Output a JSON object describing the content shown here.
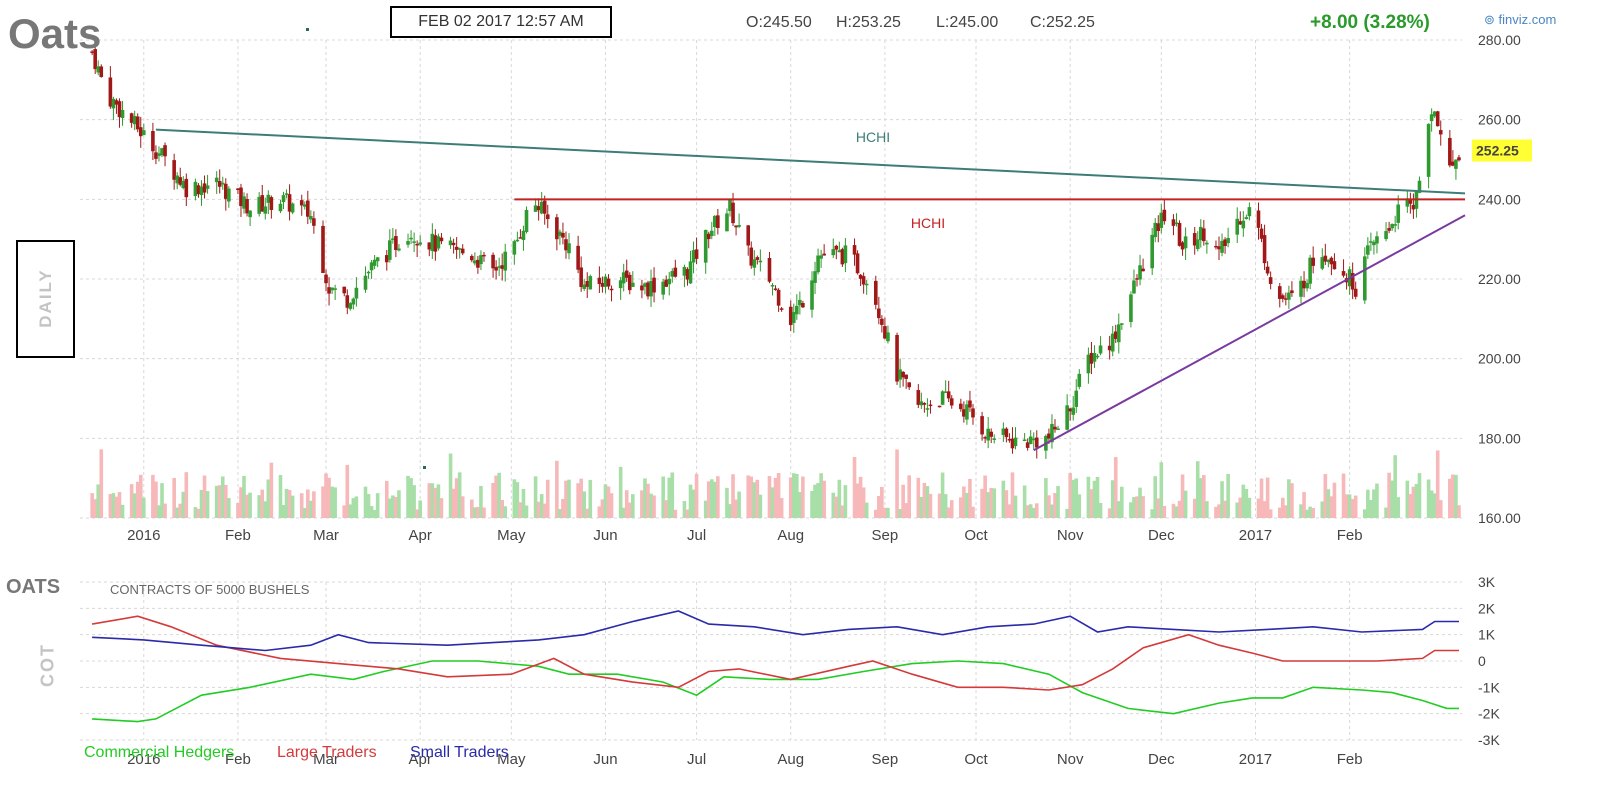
{
  "header": {
    "ticker": "Oats",
    "timestamp": "FEB 02 2017 12:57 AM",
    "open": "O:245.50",
    "high": "H:253.25",
    "low": "L:245.00",
    "close": "C:252.25",
    "change": "+8.00 (3.28%)",
    "brand": "finviz.com"
  },
  "sidebar": {
    "daily_label": "DAILY"
  },
  "cot": {
    "title": "OATS",
    "subtitle": "CONTRACTS OF 5000 BUSHELS",
    "side_label": "COT",
    "legend": [
      {
        "label": "Commercial Hedgers",
        "color": "#22cc22"
      },
      {
        "label": "Large Traders",
        "color": "#d43a3a"
      },
      {
        "label": "Small Traders",
        "color": "#2a2aaa"
      }
    ]
  },
  "colors": {
    "up": "#2f9a2f",
    "down": "#a01818",
    "vol_up": "#a8dfa8",
    "vol_down": "#f6b8b8",
    "grid": "#d8d8d8",
    "price_badge": "#ffff33"
  },
  "chart_data": [
    {
      "type": "candlestick",
      "title": "Oats",
      "ylim": [
        160,
        280
      ],
      "y_ticks": [
        "280.00",
        "260.00",
        "240.00",
        "220.00",
        "200.00",
        "180.00",
        "160.00"
      ],
      "x_ticks": [
        "2016",
        "Feb",
        "Mar",
        "Apr",
        "May",
        "Jun",
        "Jul",
        "Aug",
        "Sep",
        "Oct",
        "Nov",
        "Dec",
        "2017",
        "Feb"
      ],
      "last_price": "252.25",
      "close_path": [
        {
          "date": "2015-12-15",
          "value": 277
        },
        {
          "date": "2015-12-20",
          "value": 266
        },
        {
          "date": "2015-12-31",
          "value": 257
        },
        {
          "date": "2016-01-08",
          "value": 250
        },
        {
          "date": "2016-01-15",
          "value": 243
        },
        {
          "date": "2016-01-25",
          "value": 244
        },
        {
          "date": "2016-02-05",
          "value": 238
        },
        {
          "date": "2016-02-15",
          "value": 240
        },
        {
          "date": "2016-02-25",
          "value": 236
        },
        {
          "date": "2016-03-02",
          "value": 218
        },
        {
          "date": "2016-03-08",
          "value": 215
        },
        {
          "date": "2016-03-15",
          "value": 222
        },
        {
          "date": "2016-03-28",
          "value": 232
        },
        {
          "date": "2016-04-08",
          "value": 228
        },
        {
          "date": "2016-04-18",
          "value": 226
        },
        {
          "date": "2016-04-25",
          "value": 222
        },
        {
          "date": "2016-05-02",
          "value": 228
        },
        {
          "date": "2016-05-08",
          "value": 240
        },
        {
          "date": "2016-05-12",
          "value": 236
        },
        {
          "date": "2016-05-20",
          "value": 228
        },
        {
          "date": "2016-05-25",
          "value": 218
        },
        {
          "date": "2016-06-05",
          "value": 220
        },
        {
          "date": "2016-06-15",
          "value": 218
        },
        {
          "date": "2016-06-28",
          "value": 222
        },
        {
          "date": "2016-07-05",
          "value": 232
        },
        {
          "date": "2016-07-12",
          "value": 238
        },
        {
          "date": "2016-07-18",
          "value": 226
        },
        {
          "date": "2016-07-25",
          "value": 220
        },
        {
          "date": "2016-08-01",
          "value": 210
        },
        {
          "date": "2016-08-05",
          "value": 215
        },
        {
          "date": "2016-08-10",
          "value": 226
        },
        {
          "date": "2016-08-20",
          "value": 226
        },
        {
          "date": "2016-08-28",
          "value": 218
        },
        {
          "date": "2016-09-05",
          "value": 196
        },
        {
          "date": "2016-09-12",
          "value": 188
        },
        {
          "date": "2016-09-20",
          "value": 190
        },
        {
          "date": "2016-09-28",
          "value": 187
        },
        {
          "date": "2016-10-05",
          "value": 181
        },
        {
          "date": "2016-10-15",
          "value": 179
        },
        {
          "date": "2016-10-25",
          "value": 180
        },
        {
          "date": "2016-11-01",
          "value": 188
        },
        {
          "date": "2016-11-07",
          "value": 200
        },
        {
          "date": "2016-11-15",
          "value": 205
        },
        {
          "date": "2016-11-22",
          "value": 218
        },
        {
          "date": "2016-11-28",
          "value": 230
        },
        {
          "date": "2016-12-03",
          "value": 238
        },
        {
          "date": "2016-12-08",
          "value": 228
        },
        {
          "date": "2016-12-15",
          "value": 232
        },
        {
          "date": "2016-12-20",
          "value": 226
        },
        {
          "date": "2016-12-27",
          "value": 236
        },
        {
          "date": "2016-12-31",
          "value": 238
        },
        {
          "date": "2017-01-04",
          "value": 226
        },
        {
          "date": "2017-01-08",
          "value": 215
        },
        {
          "date": "2017-01-14",
          "value": 215
        },
        {
          "date": "2017-01-22",
          "value": 228
        },
        {
          "date": "2017-01-28",
          "value": 224
        },
        {
          "date": "2017-02-03",
          "value": 218
        },
        {
          "date": "2017-02-08",
          "value": 228
        },
        {
          "date": "2017-02-13",
          "value": 232
        },
        {
          "date": "2017-02-18",
          "value": 238
        },
        {
          "date": "2017-02-22",
          "value": 238
        },
        {
          "date": "2017-02-26",
          "value": 255
        },
        {
          "date": "2017-03-01",
          "value": 262
        },
        {
          "date": "2017-03-03",
          "value": 258
        },
        {
          "date": "2017-03-06",
          "value": 247
        },
        {
          "date": "2017-03-09",
          "value": 252.25
        }
      ],
      "annotations": [
        {
          "label": "HCHI",
          "kind": "trendline",
          "color": "#3d7d78",
          "from": {
            "date": "2016-01-05",
            "value": 257.5
          },
          "to": {
            "date": "2017-03-11",
            "value": 241.5
          }
        },
        {
          "label": "HCHI",
          "kind": "horizontal",
          "color": "#c42222",
          "from": {
            "date": "2016-05-02",
            "value": 240
          },
          "to": {
            "date": "2017-03-11",
            "value": 240
          }
        },
        {
          "label": "",
          "kind": "trendline",
          "color": "#7a3aa0",
          "from": {
            "date": "2016-10-20",
            "value": 177
          },
          "to": {
            "date": "2017-03-11",
            "value": 236
          }
        }
      ]
    },
    {
      "type": "line",
      "title": "OATS",
      "subtitle": "CONTRACTS OF 5000 BUSHELS",
      "ylim": [
        -3000,
        3000
      ],
      "y_ticks": [
        "3K",
        "2K",
        "1K",
        "0",
        "-1K",
        "-2K",
        "-3K"
      ],
      "x_ticks": [
        "2016",
        "Feb",
        "Mar",
        "Apr",
        "May",
        "Jun",
        "Jul",
        "Aug",
        "Sep",
        "Oct",
        "Nov",
        "Dec",
        "2017",
        "Feb"
      ],
      "series": [
        {
          "name": "Commercial Hedgers",
          "color": "#22cc22",
          "points": [
            {
              "date": "2015-12-15",
              "value": -2200
            },
            {
              "date": "2015-12-30",
              "value": -2300
            },
            {
              "date": "2016-01-05",
              "value": -2200
            },
            {
              "date": "2016-01-20",
              "value": -1300
            },
            {
              "date": "2016-02-05",
              "value": -1000
            },
            {
              "date": "2016-02-25",
              "value": -500
            },
            {
              "date": "2016-03-10",
              "value": -700
            },
            {
              "date": "2016-03-20",
              "value": -400
            },
            {
              "date": "2016-04-05",
              "value": 0
            },
            {
              "date": "2016-04-20",
              "value": 0
            },
            {
              "date": "2016-05-10",
              "value": -200
            },
            {
              "date": "2016-05-20",
              "value": -500
            },
            {
              "date": "2016-06-05",
              "value": -500
            },
            {
              "date": "2016-06-20",
              "value": -800
            },
            {
              "date": "2016-07-01",
              "value": -1300
            },
            {
              "date": "2016-07-10",
              "value": -600
            },
            {
              "date": "2016-07-25",
              "value": -700
            },
            {
              "date": "2016-08-10",
              "value": -700
            },
            {
              "date": "2016-08-25",
              "value": -400
            },
            {
              "date": "2016-09-10",
              "value": -100
            },
            {
              "date": "2016-09-25",
              "value": 0
            },
            {
              "date": "2016-10-10",
              "value": -100
            },
            {
              "date": "2016-10-25",
              "value": -500
            },
            {
              "date": "2016-11-05",
              "value": -1200
            },
            {
              "date": "2016-11-20",
              "value": -1800
            },
            {
              "date": "2016-12-05",
              "value": -2000
            },
            {
              "date": "2016-12-20",
              "value": -1600
            },
            {
              "date": "2016-12-31",
              "value": -1400
            },
            {
              "date": "2017-01-10",
              "value": -1400
            },
            {
              "date": "2017-01-20",
              "value": -1000
            },
            {
              "date": "2017-02-05",
              "value": -1100
            },
            {
              "date": "2017-02-15",
              "value": -1200
            },
            {
              "date": "2017-02-25",
              "value": -1500
            },
            {
              "date": "2017-03-05",
              "value": -1800
            },
            {
              "date": "2017-03-09",
              "value": -1800
            }
          ]
        },
        {
          "name": "Large Traders",
          "color": "#d43a3a",
          "points": [
            {
              "date": "2015-12-15",
              "value": 1400
            },
            {
              "date": "2015-12-30",
              "value": 1700
            },
            {
              "date": "2016-01-10",
              "value": 1300
            },
            {
              "date": "2016-01-25",
              "value": 600
            },
            {
              "date": "2016-02-15",
              "value": 100
            },
            {
              "date": "2016-03-05",
              "value": -100
            },
            {
              "date": "2016-03-25",
              "value": -300
            },
            {
              "date": "2016-04-10",
              "value": -600
            },
            {
              "date": "2016-05-01",
              "value": -500
            },
            {
              "date": "2016-05-15",
              "value": 100
            },
            {
              "date": "2016-05-25",
              "value": -500
            },
            {
              "date": "2016-06-10",
              "value": -800
            },
            {
              "date": "2016-06-25",
              "value": -1000
            },
            {
              "date": "2016-07-05",
              "value": -400
            },
            {
              "date": "2016-07-15",
              "value": -300
            },
            {
              "date": "2016-08-01",
              "value": -700
            },
            {
              "date": "2016-08-20",
              "value": -200
            },
            {
              "date": "2016-08-28",
              "value": 0
            },
            {
              "date": "2016-09-10",
              "value": -500
            },
            {
              "date": "2016-09-25",
              "value": -1000
            },
            {
              "date": "2016-10-10",
              "value": -1000
            },
            {
              "date": "2016-10-25",
              "value": -1100
            },
            {
              "date": "2016-11-05",
              "value": -900
            },
            {
              "date": "2016-11-15",
              "value": -300
            },
            {
              "date": "2016-11-25",
              "value": 500
            },
            {
              "date": "2016-12-10",
              "value": 1000
            },
            {
              "date": "2016-12-20",
              "value": 600
            },
            {
              "date": "2016-12-31",
              "value": 300
            },
            {
              "date": "2017-01-10",
              "value": 0
            },
            {
              "date": "2017-01-25",
              "value": 0
            },
            {
              "date": "2017-02-10",
              "value": 0
            },
            {
              "date": "2017-02-25",
              "value": 100
            },
            {
              "date": "2017-03-01",
              "value": 400
            },
            {
              "date": "2017-03-09",
              "value": 400
            }
          ]
        },
        {
          "name": "Small Traders",
          "color": "#2a2aaa",
          "points": [
            {
              "date": "2015-12-15",
              "value": 900
            },
            {
              "date": "2016-01-01",
              "value": 800
            },
            {
              "date": "2016-01-20",
              "value": 600
            },
            {
              "date": "2016-02-10",
              "value": 400
            },
            {
              "date": "2016-02-25",
              "value": 600
            },
            {
              "date": "2016-03-05",
              "value": 1000
            },
            {
              "date": "2016-03-15",
              "value": 700
            },
            {
              "date": "2016-04-10",
              "value": 600
            },
            {
              "date": "2016-04-25",
              "value": 700
            },
            {
              "date": "2016-05-10",
              "value": 800
            },
            {
              "date": "2016-05-25",
              "value": 1000
            },
            {
              "date": "2016-06-10",
              "value": 1500
            },
            {
              "date": "2016-06-25",
              "value": 1900
            },
            {
              "date": "2016-07-05",
              "value": 1400
            },
            {
              "date": "2016-07-20",
              "value": 1300
            },
            {
              "date": "2016-08-05",
              "value": 1000
            },
            {
              "date": "2016-08-20",
              "value": 1200
            },
            {
              "date": "2016-09-05",
              "value": 1300
            },
            {
              "date": "2016-09-20",
              "value": 1000
            },
            {
              "date": "2016-10-05",
              "value": 1300
            },
            {
              "date": "2016-10-20",
              "value": 1400
            },
            {
              "date": "2016-11-01",
              "value": 1700
            },
            {
              "date": "2016-11-10",
              "value": 1100
            },
            {
              "date": "2016-11-20",
              "value": 1300
            },
            {
              "date": "2016-12-05",
              "value": 1200
            },
            {
              "date": "2016-12-20",
              "value": 1100
            },
            {
              "date": "2017-01-05",
              "value": 1200
            },
            {
              "date": "2017-01-20",
              "value": 1300
            },
            {
              "date": "2017-02-05",
              "value": 1100
            },
            {
              "date": "2017-02-25",
              "value": 1200
            },
            {
              "date": "2017-03-01",
              "value": 1500
            },
            {
              "date": "2017-03-09",
              "value": 1500
            }
          ]
        }
      ]
    }
  ]
}
